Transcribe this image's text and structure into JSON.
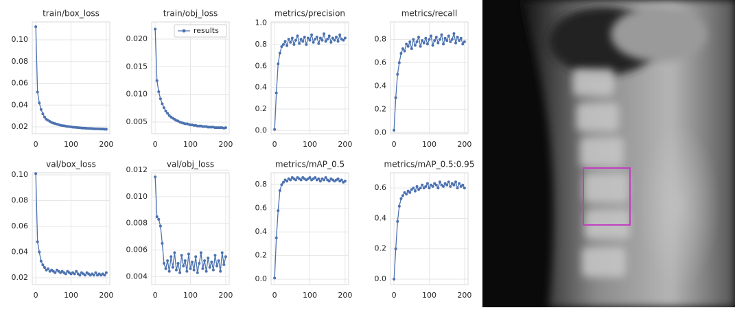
{
  "chart_data": [
    {
      "type": "line",
      "title": "train/box_loss",
      "grid": true,
      "x": [
        0,
        5,
        10,
        15,
        20,
        25,
        30,
        35,
        40,
        45,
        50,
        55,
        60,
        65,
        70,
        75,
        80,
        85,
        90,
        95,
        100,
        105,
        110,
        115,
        120,
        125,
        130,
        135,
        140,
        145,
        150,
        155,
        160,
        165,
        170,
        175,
        180,
        185,
        190,
        195,
        200
      ],
      "series": [
        {
          "color": "#4c72b0",
          "values": [
            0.112,
            0.052,
            0.042,
            0.036,
            0.032,
            0.029,
            0.027,
            0.026,
            0.025,
            0.024,
            0.0235,
            0.023,
            0.0225,
            0.022,
            0.0215,
            0.0212,
            0.021,
            0.0207,
            0.0204,
            0.0202,
            0.02,
            0.0198,
            0.0196,
            0.0195,
            0.0193,
            0.0192,
            0.019,
            0.0189,
            0.0188,
            0.0187,
            0.0186,
            0.0185,
            0.0184,
            0.0183,
            0.0182,
            0.0182,
            0.0181,
            0.018,
            0.018,
            0.0179,
            0.0178
          ]
        }
      ],
      "xlim": [
        -10,
        210
      ],
      "xticks": [
        0,
        100,
        200
      ],
      "ylim": [
        0.0137,
        0.1164
      ],
      "yticks": [
        0.02,
        0.04,
        0.06,
        0.08,
        {
          "value": 0.1,
          "label": "0.10"
        }
      ]
    },
    {
      "type": "line",
      "title": "train/obj_loss",
      "grid": true,
      "legend": "upper right",
      "x": [
        0,
        5,
        10,
        15,
        20,
        25,
        30,
        35,
        40,
        45,
        50,
        55,
        60,
        65,
        70,
        75,
        80,
        85,
        90,
        95,
        100,
        105,
        110,
        115,
        120,
        125,
        130,
        135,
        140,
        145,
        150,
        155,
        160,
        165,
        170,
        175,
        180,
        185,
        190,
        195,
        200
      ],
      "series": [
        {
          "name": "results",
          "color": "#4c72b0",
          "values": [
            0.0218,
            0.0125,
            0.0105,
            0.0092,
            0.0083,
            0.0076,
            0.007,
            0.0066,
            0.0062,
            0.0059,
            0.0057,
            0.0055,
            0.0053,
            0.0052,
            0.005,
            0.0049,
            0.0048,
            0.0047,
            0.0047,
            0.0046,
            0.0045,
            0.0045,
            0.0044,
            0.0044,
            0.0043,
            0.0043,
            0.0043,
            0.0042,
            0.0042,
            0.0042,
            0.0041,
            0.0041,
            0.0041,
            0.0041,
            0.004,
            0.004,
            0.004,
            0.004,
            0.004,
            0.0039,
            0.004
          ]
        }
      ],
      "xlim": [
        -10,
        210
      ],
      "xticks": [
        0,
        100,
        200
      ],
      "ylim": [
        0.0029,
        0.0231
      ],
      "yticks": [
        0.005,
        {
          "value": 0.01,
          "label": "0.010"
        },
        0.015,
        {
          "value": 0.02,
          "label": "0.020"
        }
      ]
    },
    {
      "type": "line",
      "title": "metrics/precision",
      "grid": true,
      "x": [
        0,
        5,
        10,
        15,
        20,
        25,
        30,
        35,
        40,
        45,
        50,
        55,
        60,
        65,
        70,
        75,
        80,
        85,
        90,
        95,
        100,
        105,
        110,
        115,
        120,
        125,
        130,
        135,
        140,
        145,
        150,
        155,
        160,
        165,
        170,
        175,
        180,
        185,
        190,
        195,
        200
      ],
      "series": [
        {
          "color": "#4c72b0",
          "values": [
            0.01,
            0.35,
            0.62,
            0.72,
            0.78,
            0.8,
            0.83,
            0.79,
            0.85,
            0.82,
            0.86,
            0.8,
            0.84,
            0.88,
            0.81,
            0.85,
            0.83,
            0.87,
            0.8,
            0.86,
            0.84,
            0.89,
            0.82,
            0.85,
            0.87,
            0.81,
            0.86,
            0.84,
            0.9,
            0.83,
            0.85,
            0.88,
            0.82,
            0.86,
            0.84,
            0.87,
            0.83,
            0.89,
            0.85,
            0.84,
            0.86
          ]
        }
      ],
      "xlim": [
        -10,
        210
      ],
      "xticks": [
        0,
        100,
        200
      ],
      "ylim": [
        -0.03,
        1.01
      ],
      "yticks": [
        {
          "value": 0,
          "label": "0.0"
        },
        0.2,
        0.4,
        0.6,
        0.8,
        {
          "value": 1,
          "label": "1.0"
        }
      ]
    },
    {
      "type": "line",
      "title": "metrics/recall",
      "grid": true,
      "x": [
        0,
        5,
        10,
        15,
        20,
        25,
        30,
        35,
        40,
        45,
        50,
        55,
        60,
        65,
        70,
        75,
        80,
        85,
        90,
        95,
        100,
        105,
        110,
        115,
        120,
        125,
        130,
        135,
        140,
        145,
        150,
        155,
        160,
        165,
        170,
        175,
        180,
        185,
        190,
        195,
        200
      ],
      "series": [
        {
          "color": "#4c72b0",
          "values": [
            0.02,
            0.3,
            0.5,
            0.6,
            0.68,
            0.72,
            0.7,
            0.76,
            0.74,
            0.78,
            0.72,
            0.8,
            0.75,
            0.78,
            0.82,
            0.74,
            0.79,
            0.77,
            0.81,
            0.76,
            0.8,
            0.83,
            0.75,
            0.79,
            0.82,
            0.77,
            0.8,
            0.84,
            0.76,
            0.81,
            0.79,
            0.83,
            0.78,
            0.8,
            0.85,
            0.77,
            0.82,
            0.79,
            0.81,
            0.76,
            0.78
          ]
        }
      ],
      "xlim": [
        -10,
        210
      ],
      "xticks": [
        0,
        100,
        200
      ],
      "ylim": [
        -0.01,
        0.95
      ],
      "yticks": [
        {
          "value": 0,
          "label": "0.0"
        },
        0.2,
        0.4,
        0.6,
        0.8
      ]
    },
    {
      "type": "line",
      "title": "val/box_loss",
      "grid": true,
      "x": [
        0,
        5,
        10,
        15,
        20,
        25,
        30,
        35,
        40,
        45,
        50,
        55,
        60,
        65,
        70,
        75,
        80,
        85,
        90,
        95,
        100,
        105,
        110,
        115,
        120,
        125,
        130,
        135,
        140,
        145,
        150,
        155,
        160,
        165,
        170,
        175,
        180,
        185,
        190,
        195,
        200
      ],
      "series": [
        {
          "color": "#4c72b0",
          "values": [
            0.101,
            0.048,
            0.04,
            0.033,
            0.03,
            0.028,
            0.026,
            0.027,
            0.025,
            0.026,
            0.025,
            0.024,
            0.026,
            0.025,
            0.024,
            0.025,
            0.024,
            0.023,
            0.025,
            0.024,
            0.023,
            0.024,
            0.023,
            0.025,
            0.023,
            0.022,
            0.024,
            0.023,
            0.022,
            0.024,
            0.023,
            0.022,
            0.023,
            0.022,
            0.024,
            0.022,
            0.023,
            0.022,
            0.023,
            0.022,
            0.024
          ]
        }
      ],
      "xlim": [
        -10,
        210
      ],
      "xticks": [
        0,
        100,
        200
      ],
      "ylim": [
        0.0147,
        0.1016
      ],
      "yticks": [
        0.02,
        0.04,
        0.06,
        0.08,
        {
          "value": 0.1,
          "label": "0.10"
        }
      ]
    },
    {
      "type": "line",
      "title": "val/obj_loss",
      "grid": true,
      "x": [
        0,
        5,
        10,
        15,
        20,
        25,
        30,
        35,
        40,
        45,
        50,
        55,
        60,
        65,
        70,
        75,
        80,
        85,
        90,
        95,
        100,
        105,
        110,
        115,
        120,
        125,
        130,
        135,
        140,
        145,
        150,
        155,
        160,
        165,
        170,
        175,
        180,
        185,
        190,
        195,
        200
      ],
      "series": [
        {
          "color": "#4c72b0",
          "values": [
            0.0115,
            0.0085,
            0.0083,
            0.0078,
            0.0065,
            0.005,
            0.0046,
            0.0052,
            0.0044,
            0.0055,
            0.0047,
            0.0058,
            0.0045,
            0.005,
            0.0043,
            0.0056,
            0.0048,
            0.0052,
            0.0044,
            0.0057,
            0.0046,
            0.0051,
            0.0045,
            0.0055,
            0.0043,
            0.005,
            0.0058,
            0.0046,
            0.0052,
            0.0044,
            0.0054,
            0.0047,
            0.0051,
            0.0045,
            0.0056,
            0.0048,
            0.0052,
            0.0044,
            0.0058,
            0.0049,
            0.0055
          ]
        }
      ],
      "xlim": [
        -10,
        210
      ],
      "xticks": [
        0,
        100,
        200
      ],
      "ylim": [
        0.0034,
        0.0118
      ],
      "yticks": [
        0.004,
        0.006,
        0.008,
        {
          "value": 0.01,
          "label": "0.010"
        },
        0.012
      ]
    },
    {
      "type": "line",
      "title": "metrics/mAP_0.5",
      "grid": true,
      "x": [
        0,
        5,
        10,
        15,
        20,
        25,
        30,
        35,
        40,
        45,
        50,
        55,
        60,
        65,
        70,
        75,
        80,
        85,
        90,
        95,
        100,
        105,
        110,
        115,
        120,
        125,
        130,
        135,
        140,
        145,
        150,
        155,
        160,
        165,
        170,
        175,
        180,
        185,
        190,
        195,
        200
      ],
      "series": [
        {
          "color": "#4c72b0",
          "values": [
            0.01,
            0.35,
            0.58,
            0.75,
            0.8,
            0.82,
            0.84,
            0.83,
            0.85,
            0.84,
            0.86,
            0.85,
            0.84,
            0.86,
            0.85,
            0.84,
            0.86,
            0.85,
            0.84,
            0.85,
            0.86,
            0.84,
            0.85,
            0.86,
            0.84,
            0.85,
            0.83,
            0.85,
            0.84,
            0.86,
            0.84,
            0.83,
            0.85,
            0.84,
            0.83,
            0.84,
            0.85,
            0.83,
            0.84,
            0.82,
            0.83
          ]
        }
      ],
      "xlim": [
        -10,
        210
      ],
      "xticks": [
        0,
        100,
        200
      ],
      "ylim": [
        -0.046,
        0.9
      ],
      "yticks": [
        {
          "value": 0,
          "label": "0.0"
        },
        0.2,
        0.4,
        0.6,
        0.8
      ]
    },
    {
      "type": "line",
      "title": "metrics/mAP_0.5:0.95",
      "grid": true,
      "x": [
        0,
        5,
        10,
        15,
        20,
        25,
        30,
        35,
        40,
        45,
        50,
        55,
        60,
        65,
        70,
        75,
        80,
        85,
        90,
        95,
        100,
        105,
        110,
        115,
        120,
        125,
        130,
        135,
        140,
        145,
        150,
        155,
        160,
        165,
        170,
        175,
        180,
        185,
        190,
        195,
        200
      ],
      "series": [
        {
          "color": "#4c72b0",
          "values": [
            0.0,
            0.2,
            0.38,
            0.48,
            0.53,
            0.55,
            0.57,
            0.56,
            0.58,
            0.57,
            0.59,
            0.6,
            0.58,
            0.61,
            0.59,
            0.6,
            0.62,
            0.6,
            0.61,
            0.63,
            0.6,
            0.62,
            0.61,
            0.63,
            0.62,
            0.6,
            0.64,
            0.62,
            0.61,
            0.63,
            0.62,
            0.64,
            0.61,
            0.63,
            0.62,
            0.64,
            0.6,
            0.63,
            0.61,
            0.62,
            0.6
          ]
        }
      ],
      "xlim": [
        -10,
        210
      ],
      "xticks": [
        0,
        100,
        200
      ],
      "ylim": [
        -0.036,
        0.7
      ],
      "yticks": [
        {
          "value": 0,
          "label": "0.0"
        },
        0.2,
        0.4,
        0.6
      ]
    }
  ]
}
